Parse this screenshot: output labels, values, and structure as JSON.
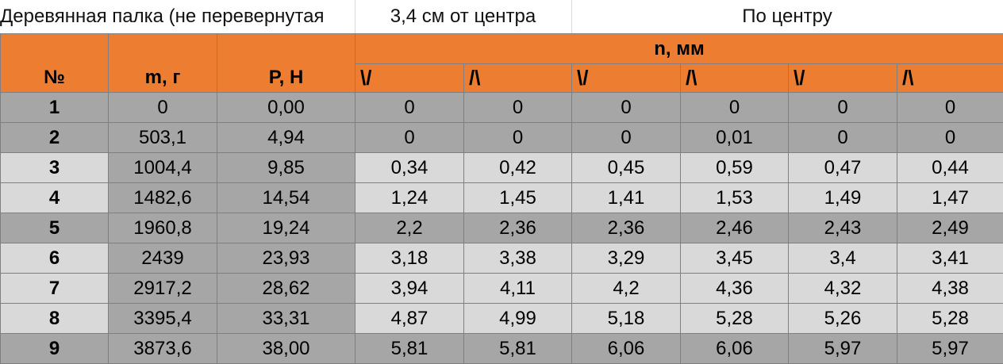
{
  "top_labels": {
    "left": "Деревянная палка (не перевернутая",
    "middle": "3,4 см от центра",
    "right": "По центру"
  },
  "header": {
    "no": "№",
    "mass": "m, г",
    "force": "P, Н",
    "deflection": "n, мм",
    "directions": [
      "\\/",
      "/\\",
      "\\/",
      "/\\",
      "\\/",
      "/\\"
    ]
  },
  "rows": [
    {
      "n": "1",
      "m": "0",
      "p": "0,00",
      "v": [
        "0",
        "0",
        "0",
        "0",
        "0",
        "0"
      ]
    },
    {
      "n": "2",
      "m": "503,1",
      "p": "4,94",
      "v": [
        "0",
        "0",
        "0",
        "0,01",
        "0",
        "0"
      ]
    },
    {
      "n": "3",
      "m": "1004,4",
      "p": "9,85",
      "v": [
        "0,34",
        "0,42",
        "0,45",
        "0,59",
        "0,47",
        "0,44"
      ]
    },
    {
      "n": "4",
      "m": "1482,6",
      "p": "14,54",
      "v": [
        "1,24",
        "1,45",
        "1,41",
        "1,53",
        "1,49",
        "1,47"
      ]
    },
    {
      "n": "5",
      "m": "1960,8",
      "p": "19,24",
      "v": [
        "2,2",
        "2,36",
        "2,36",
        "2,46",
        "2,43",
        "2,49"
      ]
    },
    {
      "n": "6",
      "m": "2439",
      "p": "23,93",
      "v": [
        "3,18",
        "3,38",
        "3,29",
        "3,45",
        "3,4",
        "3,41"
      ]
    },
    {
      "n": "7",
      "m": "2917,2",
      "p": "28,62",
      "v": [
        "3,94",
        "4,11",
        "4,2",
        "4,36",
        "4,32",
        "4,38"
      ]
    },
    {
      "n": "8",
      "m": "3395,4",
      "p": "33,31",
      "v": [
        "4,87",
        "4,99",
        "5,18",
        "5,28",
        "5,26",
        "5,28"
      ]
    },
    {
      "n": "9",
      "m": "3873,6",
      "p": "38,00",
      "v": [
        "5,81",
        "5,81",
        "6,06",
        "6,06",
        "5,97",
        "5,97"
      ]
    }
  ]
}
